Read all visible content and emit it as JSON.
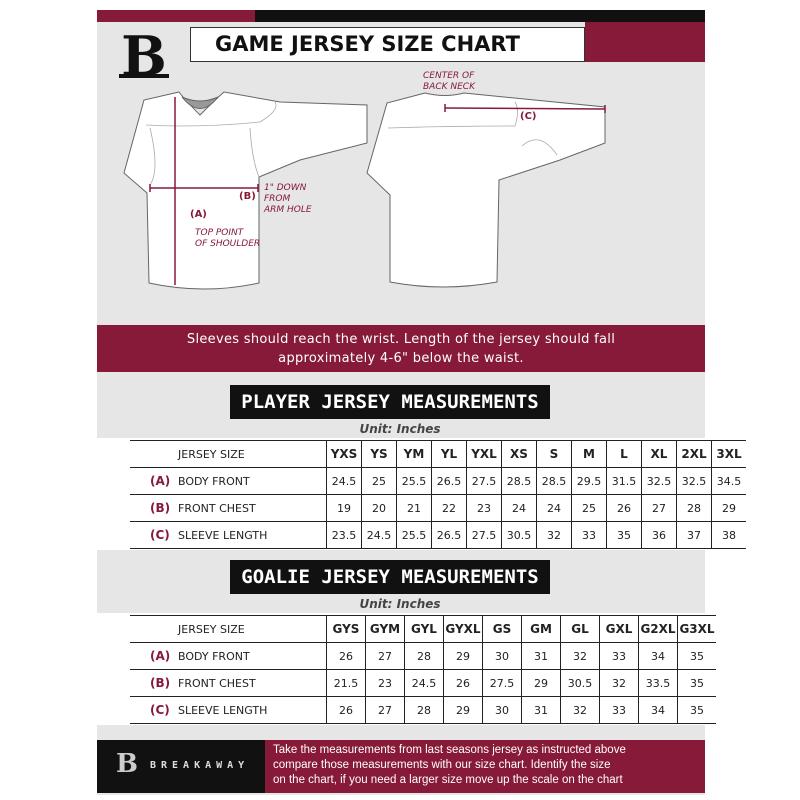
{
  "header": {
    "title": "GAME JERSEY SIZE CHART",
    "logo_text": "B"
  },
  "diagram": {
    "label_a": "(A)",
    "note_a": [
      "TOP POINT",
      "OF SHOULDER"
    ],
    "label_b": "(B)",
    "note_b": [
      "1\" DOWN",
      "FROM",
      "ARM HOLE"
    ],
    "label_c": "(C)",
    "note_c": [
      "CENTER OF",
      "BACK NECK"
    ]
  },
  "banner": {
    "line1": "Sleeves should reach the wrist. Length of the jersey should fall",
    "line2": "approximately 4-6\" below the waist."
  },
  "player": {
    "title": "PLAYER JERSEY MEASUREMENTS",
    "unit": "Unit: Inches",
    "header_label": "JERSEY SIZE",
    "sizes": [
      "YXS",
      "YS",
      "YM",
      "YL",
      "YXL",
      "XS",
      "S",
      "M",
      "L",
      "XL",
      "2XL",
      "3XL"
    ],
    "rows": [
      {
        "letter": "(A)",
        "label": "BODY FRONT",
        "values": [
          "24.5",
          "25",
          "25.5",
          "26.5",
          "27.5",
          "28.5",
          "28.5",
          "29.5",
          "31.5",
          "32.5",
          "32.5",
          "34.5"
        ]
      },
      {
        "letter": "(B)",
        "label": "FRONT CHEST",
        "values": [
          "19",
          "20",
          "21",
          "22",
          "23",
          "24",
          "24",
          "25",
          "26",
          "27",
          "28",
          "29"
        ]
      },
      {
        "letter": "(C)",
        "label": "SLEEVE LENGTH",
        "values": [
          "23.5",
          "24.5",
          "25.5",
          "26.5",
          "27.5",
          "30.5",
          "32",
          "33",
          "35",
          "36",
          "37",
          "38"
        ]
      }
    ]
  },
  "goalie": {
    "title": "GOALIE JERSEY MEASUREMENTS",
    "unit": "Unit: Inches",
    "header_label": "JERSEY SIZE",
    "sizes": [
      "GYS",
      "GYM",
      "GYL",
      "GYXL",
      "GS",
      "GM",
      "GL",
      "GXL",
      "G2XL",
      "G3XL"
    ],
    "rows": [
      {
        "letter": "(A)",
        "label": "BODY FRONT",
        "values": [
          "26",
          "27",
          "28",
          "29",
          "30",
          "31",
          "32",
          "33",
          "34",
          "35"
        ]
      },
      {
        "letter": "(B)",
        "label": "FRONT CHEST",
        "values": [
          "21.5",
          "23",
          "24.5",
          "26",
          "27.5",
          "29",
          "30.5",
          "32",
          "33.5",
          "35"
        ]
      },
      {
        "letter": "(C)",
        "label": "SLEEVE LENGTH",
        "values": [
          "26",
          "27",
          "28",
          "29",
          "30",
          "31",
          "32",
          "33",
          "34",
          "35"
        ]
      }
    ]
  },
  "footer": {
    "brand": "BREAKAWAY",
    "logo_text": "B",
    "lines": [
      "Take the measurements from last seasons jersey as instructed above",
      "compare those measurements  with our size chart. Identify the size",
      "on the chart, if you need a larger size move up the scale on the chart"
    ]
  },
  "colors": {
    "accent": "#861a38",
    "dark": "#111111",
    "panel": "#e6e6e7"
  }
}
